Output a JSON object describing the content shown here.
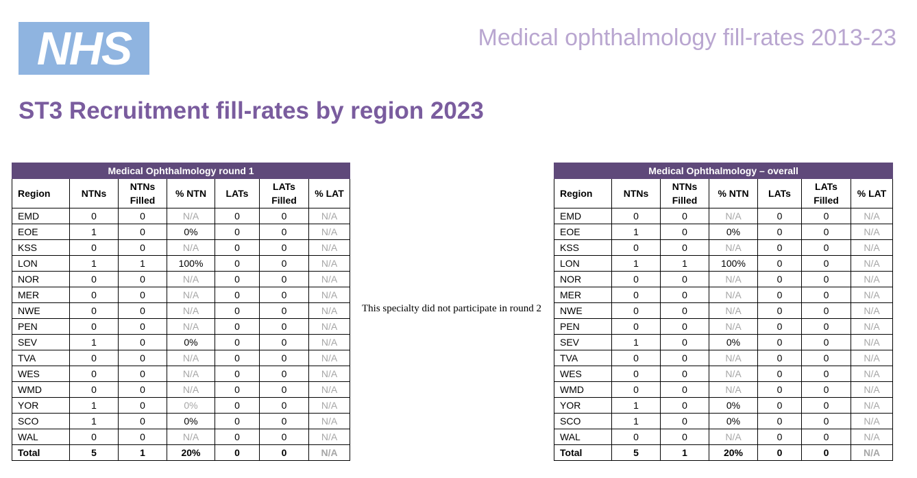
{
  "logo_text": "NHS",
  "doc_title": "Medical ophthalmology fill-rates 2013-23",
  "main_title": "ST3 Recruitment fill-rates by region 2023",
  "headers": [
    "Region",
    "NTNs",
    "NTNs Filled",
    "% NTN",
    "LATs",
    "LATs Filled",
    "% LAT"
  ],
  "round1": {
    "caption": "Medical Ophthalmology round 1",
    "rows": [
      [
        "EMD",
        "0",
        "0",
        "N/A",
        "0",
        "0",
        "N/A"
      ],
      [
        "EOE",
        "1",
        "0",
        "0%",
        "0",
        "0",
        "N/A"
      ],
      [
        "KSS",
        "0",
        "0",
        "N/A",
        "0",
        "0",
        "N/A"
      ],
      [
        "LON",
        "1",
        "1",
        "100%",
        "0",
        "0",
        "N/A"
      ],
      [
        "NOR",
        "0",
        "0",
        "N/A",
        "0",
        "0",
        "N/A"
      ],
      [
        "MER",
        "0",
        "0",
        "N/A",
        "0",
        "0",
        "N/A"
      ],
      [
        "NWE",
        "0",
        "0",
        "N/A",
        "0",
        "0",
        "N/A"
      ],
      [
        "PEN",
        "0",
        "0",
        "N/A",
        "0",
        "0",
        "N/A"
      ],
      [
        "SEV",
        "1",
        "0",
        "0%",
        "0",
        "0",
        "N/A"
      ],
      [
        "TVA",
        "0",
        "0",
        "N/A",
        "0",
        "0",
        "N/A"
      ],
      [
        "WES",
        "0",
        "0",
        "N/A",
        "0",
        "0",
        "N/A"
      ],
      [
        "WMD",
        "0",
        "0",
        "N/A",
        "0",
        "0",
        "N/A"
      ],
      [
        "YOR",
        "1",
        "0",
        "0%",
        "0",
        "0",
        "N/A"
      ],
      [
        "SCO",
        "1",
        "0",
        "0%",
        "0",
        "0",
        "N/A"
      ],
      [
        "WAL",
        "0",
        "0",
        "N/A",
        "0",
        "0",
        "N/A"
      ],
      [
        "Total",
        "5",
        "1",
        "20%",
        "0",
        "0",
        "N/A"
      ]
    ]
  },
  "round2_note": "This specialty did not participate in round 2",
  "overall": {
    "caption": "Medical Ophthalmology – overall",
    "rows": [
      [
        "EMD",
        "0",
        "0",
        "N/A",
        "0",
        "0",
        "N/A"
      ],
      [
        "EOE",
        "1",
        "0",
        "0%",
        "0",
        "0",
        "N/A"
      ],
      [
        "KSS",
        "0",
        "0",
        "N/A",
        "0",
        "0",
        "N/A"
      ],
      [
        "LON",
        "1",
        "1",
        "100%",
        "0",
        "0",
        "N/A"
      ],
      [
        "NOR",
        "0",
        "0",
        "N/A",
        "0",
        "0",
        "N/A"
      ],
      [
        "MER",
        "0",
        "0",
        "N/A",
        "0",
        "0",
        "N/A"
      ],
      [
        "NWE",
        "0",
        "0",
        "N/A",
        "0",
        "0",
        "N/A"
      ],
      [
        "PEN",
        "0",
        "0",
        "N/A",
        "0",
        "0",
        "N/A"
      ],
      [
        "SEV",
        "1",
        "0",
        "0%",
        "0",
        "0",
        "N/A"
      ],
      [
        "TVA",
        "0",
        "0",
        "N/A",
        "0",
        "0",
        "N/A"
      ],
      [
        "WES",
        "0",
        "0",
        "N/A",
        "0",
        "0",
        "N/A"
      ],
      [
        "WMD",
        "0",
        "0",
        "N/A",
        "0",
        "0",
        "N/A"
      ],
      [
        "YOR",
        "1",
        "0",
        "0%",
        "0",
        "0",
        "N/A"
      ],
      [
        "SCO",
        "1",
        "0",
        "0%",
        "0",
        "0",
        "N/A"
      ],
      [
        "WAL",
        "0",
        "0",
        "N/A",
        "0",
        "0",
        "N/A"
      ],
      [
        "Total",
        "5",
        "1",
        "20%",
        "0",
        "0",
        "N/A"
      ]
    ]
  },
  "colors": {
    "caption_bg": "#5f497a",
    "title": "#7a5c9e",
    "doc_title": "#b9a6d0",
    "logo_bg": "#8fb4e0",
    "na_text": "#a6a6a6"
  }
}
